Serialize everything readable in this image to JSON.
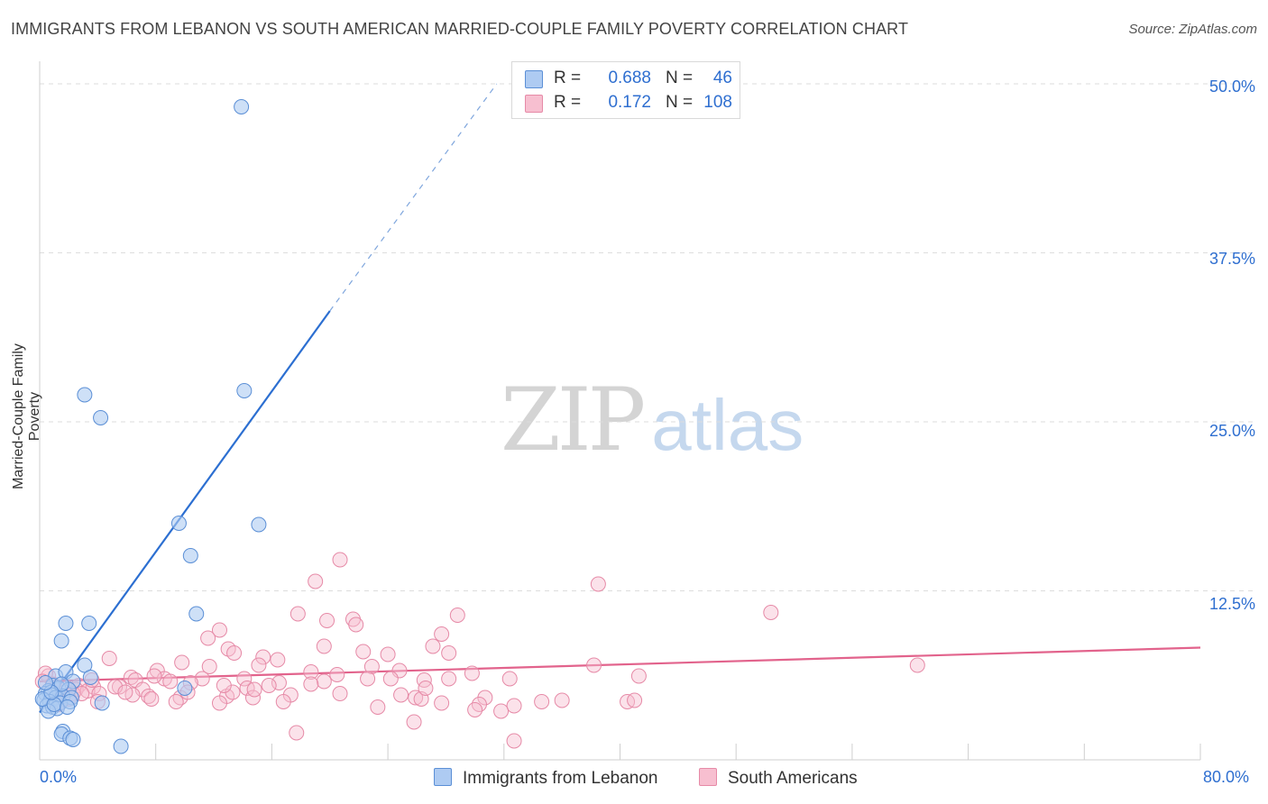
{
  "title": "IMMIGRANTS FROM LEBANON VS SOUTH AMERICAN MARRIED-COUPLE FAMILY POVERTY CORRELATION CHART",
  "source": "Source: ZipAtlas.com",
  "watermark": {
    "zip": "ZIP",
    "atlas": "atlas"
  },
  "legend": {
    "series1": {
      "r_label": "R =",
      "r_value": "0.688",
      "n_label": "N =",
      "n_value": "46",
      "name": "Immigrants from Lebanon"
    },
    "series2": {
      "r_label": "R =",
      "r_value": "0.172",
      "n_label": "N =",
      "n_value": "108",
      "name": "South Americans"
    }
  },
  "colors": {
    "blue_fill": "#aecbf2",
    "blue_stroke": "#5b8fd6",
    "blue_line": "#2c6fd1",
    "pink_fill": "#f7bfd0",
    "pink_stroke": "#e68aa7",
    "pink_line": "#e2638c",
    "tick_text": "#2f6fd0",
    "grid": "#dddddd"
  },
  "chart_data": {
    "type": "scatter",
    "title": "IMMIGRANTS FROM LEBANON VS SOUTH AMERICAN MARRIED-COUPLE FAMILY POVERTY CORRELATION CHART",
    "xlabel": "",
    "ylabel": "Married-Couple Family Poverty",
    "xlim": [
      0,
      80
    ],
    "ylim": [
      0,
      51
    ],
    "x_tick_labels": [
      "0.0%",
      "80.0%"
    ],
    "y_ticks": [
      12.5,
      25.0,
      37.5,
      50.0
    ],
    "y_tick_labels": [
      "12.5%",
      "25.0%",
      "37.5%",
      "50.0%"
    ],
    "grid": "horizontal dashed",
    "series": [
      {
        "name": "Immigrants from Lebanon",
        "color": "#aecbf2",
        "trend": {
          "x": [
            0,
            20
          ],
          "y": [
            3.5,
            33.2
          ],
          "dashed_to": [
            31.5,
            50.0
          ]
        },
        "points": [
          [
            13.9,
            48.3
          ],
          [
            3.1,
            27.0
          ],
          [
            14.1,
            27.3
          ],
          [
            4.2,
            25.3
          ],
          [
            9.6,
            17.5
          ],
          [
            15.1,
            17.4
          ],
          [
            10.4,
            15.1
          ],
          [
            10.8,
            10.8
          ],
          [
            1.8,
            10.1
          ],
          [
            3.4,
            10.1
          ],
          [
            1.5,
            8.8
          ],
          [
            3.1,
            7.0
          ],
          [
            1.1,
            6.2
          ],
          [
            3.5,
            6.1
          ],
          [
            1.8,
            6.5
          ],
          [
            2.3,
            5.8
          ],
          [
            0.9,
            5.5
          ],
          [
            1.3,
            5.3
          ],
          [
            0.6,
            5.1
          ],
          [
            2.0,
            5.2
          ],
          [
            10.0,
            5.3
          ],
          [
            0.4,
            4.9
          ],
          [
            0.8,
            4.8
          ],
          [
            1.1,
            4.6
          ],
          [
            1.6,
            4.7
          ],
          [
            2.2,
            4.6
          ],
          [
            0.3,
            4.4
          ],
          [
            0.7,
            4.3
          ],
          [
            1.4,
            4.2
          ],
          [
            2.1,
            4.3
          ],
          [
            0.5,
            4.0
          ],
          [
            0.9,
            3.9
          ],
          [
            1.2,
            3.8
          ],
          [
            0.6,
            3.6
          ],
          [
            4.3,
            4.2
          ],
          [
            0.2,
            4.5
          ],
          [
            1.0,
            4.1
          ],
          [
            1.5,
            5.6
          ],
          [
            0.8,
            5.0
          ],
          [
            1.9,
            3.9
          ],
          [
            0.4,
            5.7
          ],
          [
            1.6,
            2.1
          ],
          [
            1.5,
            1.9
          ],
          [
            2.1,
            1.6
          ],
          [
            2.3,
            1.5
          ],
          [
            5.6,
            1.0
          ]
        ]
      },
      {
        "name": "South Americans",
        "color": "#f7bfd0",
        "trend": {
          "x": [
            0,
            80
          ],
          "y": [
            5.8,
            8.3
          ]
        },
        "points": [
          [
            20.7,
            14.8
          ],
          [
            19.0,
            13.2
          ],
          [
            38.5,
            13.0
          ],
          [
            17.8,
            10.8
          ],
          [
            28.8,
            10.7
          ],
          [
            50.4,
            10.9
          ],
          [
            19.8,
            10.3
          ],
          [
            21.6,
            10.4
          ],
          [
            21.8,
            10.0
          ],
          [
            12.4,
            9.6
          ],
          [
            27.7,
            9.3
          ],
          [
            11.6,
            9.0
          ],
          [
            13.0,
            8.2
          ],
          [
            19.6,
            8.4
          ],
          [
            27.1,
            8.4
          ],
          [
            22.3,
            8.0
          ],
          [
            28.2,
            7.9
          ],
          [
            13.4,
            7.9
          ],
          [
            15.4,
            7.6
          ],
          [
            24.0,
            7.8
          ],
          [
            16.4,
            7.4
          ],
          [
            4.8,
            7.5
          ],
          [
            15.1,
            7.0
          ],
          [
            22.9,
            6.9
          ],
          [
            11.7,
            6.9
          ],
          [
            8.1,
            6.6
          ],
          [
            38.2,
            7.0
          ],
          [
            9.8,
            7.2
          ],
          [
            18.7,
            6.5
          ],
          [
            20.5,
            6.3
          ],
          [
            24.8,
            6.6
          ],
          [
            29.8,
            6.4
          ],
          [
            6.3,
            6.1
          ],
          [
            8.6,
            6.0
          ],
          [
            28.2,
            6.0
          ],
          [
            22.6,
            6.0
          ],
          [
            14.1,
            6.0
          ],
          [
            11.2,
            6.0
          ],
          [
            24.2,
            6.0
          ],
          [
            60.5,
            7.0
          ],
          [
            41.3,
            6.2
          ],
          [
            6.6,
            5.9
          ],
          [
            9.0,
            5.8
          ],
          [
            16.5,
            5.7
          ],
          [
            19.6,
            5.8
          ],
          [
            10.4,
            5.7
          ],
          [
            26.5,
            5.9
          ],
          [
            32.4,
            6.0
          ],
          [
            5.5,
            5.4
          ],
          [
            15.8,
            5.5
          ],
          [
            14.3,
            5.3
          ],
          [
            7.1,
            5.2
          ],
          [
            5.2,
            5.4
          ],
          [
            2.7,
            5.5
          ],
          [
            3.7,
            5.4
          ],
          [
            2.5,
            5.2
          ],
          [
            1.9,
            5.3
          ],
          [
            3.3,
            5.1
          ],
          [
            0.6,
            6.2
          ],
          [
            1.1,
            5.0
          ],
          [
            1.7,
            5.0
          ],
          [
            2.3,
            4.9
          ],
          [
            2.9,
            4.9
          ],
          [
            4.1,
            4.9
          ],
          [
            6.4,
            4.8
          ],
          [
            7.5,
            4.7
          ],
          [
            9.7,
            4.6
          ],
          [
            12.9,
            4.7
          ],
          [
            14.7,
            4.6
          ],
          [
            17.3,
            4.8
          ],
          [
            20.7,
            4.9
          ],
          [
            24.9,
            4.8
          ],
          [
            25.9,
            4.6
          ],
          [
            30.7,
            4.6
          ],
          [
            34.6,
            4.3
          ],
          [
            36.0,
            4.4
          ],
          [
            40.5,
            4.3
          ],
          [
            41.0,
            4.4
          ],
          [
            4.0,
            4.3
          ],
          [
            7.7,
            4.5
          ],
          [
            9.4,
            4.3
          ],
          [
            12.4,
            4.2
          ],
          [
            16.8,
            4.3
          ],
          [
            26.3,
            4.5
          ],
          [
            27.7,
            4.2
          ],
          [
            30.3,
            4.1
          ],
          [
            32.7,
            4.0
          ],
          [
            23.3,
            3.9
          ],
          [
            1.3,
            4.1
          ],
          [
            2.0,
            4.5
          ],
          [
            5.9,
            5.0
          ],
          [
            13.3,
            5.0
          ],
          [
            14.8,
            5.2
          ],
          [
            18.7,
            5.6
          ],
          [
            26.6,
            5.3
          ],
          [
            10.2,
            5.0
          ],
          [
            30.0,
            3.7
          ],
          [
            31.8,
            3.6
          ],
          [
            25.8,
            2.8
          ],
          [
            17.7,
            2.0
          ],
          [
            32.7,
            1.4
          ],
          [
            0.4,
            6.4
          ],
          [
            3.6,
            5.9
          ],
          [
            7.9,
            6.2
          ],
          [
            12.7,
            5.5
          ],
          [
            0.2,
            5.8
          ],
          [
            0.9,
            5.6
          ],
          [
            1.5,
            4.3
          ]
        ]
      }
    ]
  },
  "axes": {
    "x_min_label": "0.0%",
    "x_max_label": "80.0%"
  }
}
